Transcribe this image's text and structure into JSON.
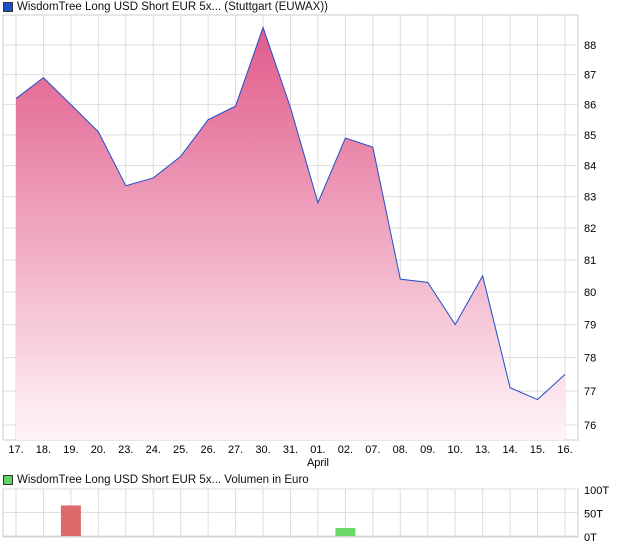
{
  "chart_data": [
    {
      "type": "area",
      "title": "WisdomTree Long USD Short EUR 5x... (Stuttgart (EUWAX))",
      "categories": [
        "17.",
        "18.",
        "19.",
        "20.",
        "23.",
        "24.",
        "25.",
        "26.",
        "27.",
        "30.",
        "31.",
        "01.",
        "02.",
        "07.",
        "08.",
        "09.",
        "10.",
        "13.",
        "14.",
        "15.",
        "16."
      ],
      "x_sublabel": "April",
      "values": [
        86.2,
        86.9,
        86.0,
        85.1,
        83.35,
        83.6,
        84.3,
        85.5,
        85.95,
        88.6,
        85.9,
        82.8,
        84.9,
        84.6,
        80.4,
        80.3,
        79.0,
        80.5,
        77.1,
        76.75,
        77.5
      ],
      "yticks": [
        76,
        77,
        78,
        79,
        80,
        81,
        82,
        83,
        84,
        85,
        86,
        87,
        88
      ],
      "ylim": [
        75.6,
        89.3
      ],
      "yscale": "log",
      "grid": true,
      "line_color": "#1f4fc8",
      "fill_top": "#e05a8a",
      "legend_color": "#1f4fc8"
    },
    {
      "type": "bar",
      "title": "WisdomTree Long USD Short EUR 5x... Volumen in Euro",
      "categories": [
        "17.",
        "18.",
        "19.",
        "20.",
        "23.",
        "24.",
        "25.",
        "26.",
        "27.",
        "30.",
        "31.",
        "01.",
        "02.",
        "07.",
        "08.",
        "09.",
        "10.",
        "13.",
        "14.",
        "15.",
        "16."
      ],
      "values": [
        0,
        0,
        65,
        0,
        0,
        0,
        0,
        0,
        0,
        0,
        0,
        0,
        17,
        0,
        0,
        0,
        0,
        0,
        0,
        0,
        0
      ],
      "colors": {
        "2": "#dc6a6a",
        "12": "#6ad868"
      },
      "yticks": [
        "0T",
        "50T",
        "100T"
      ],
      "ylim": [
        0,
        100
      ],
      "unit": "T",
      "legend_color": "#5fd35f"
    }
  ]
}
